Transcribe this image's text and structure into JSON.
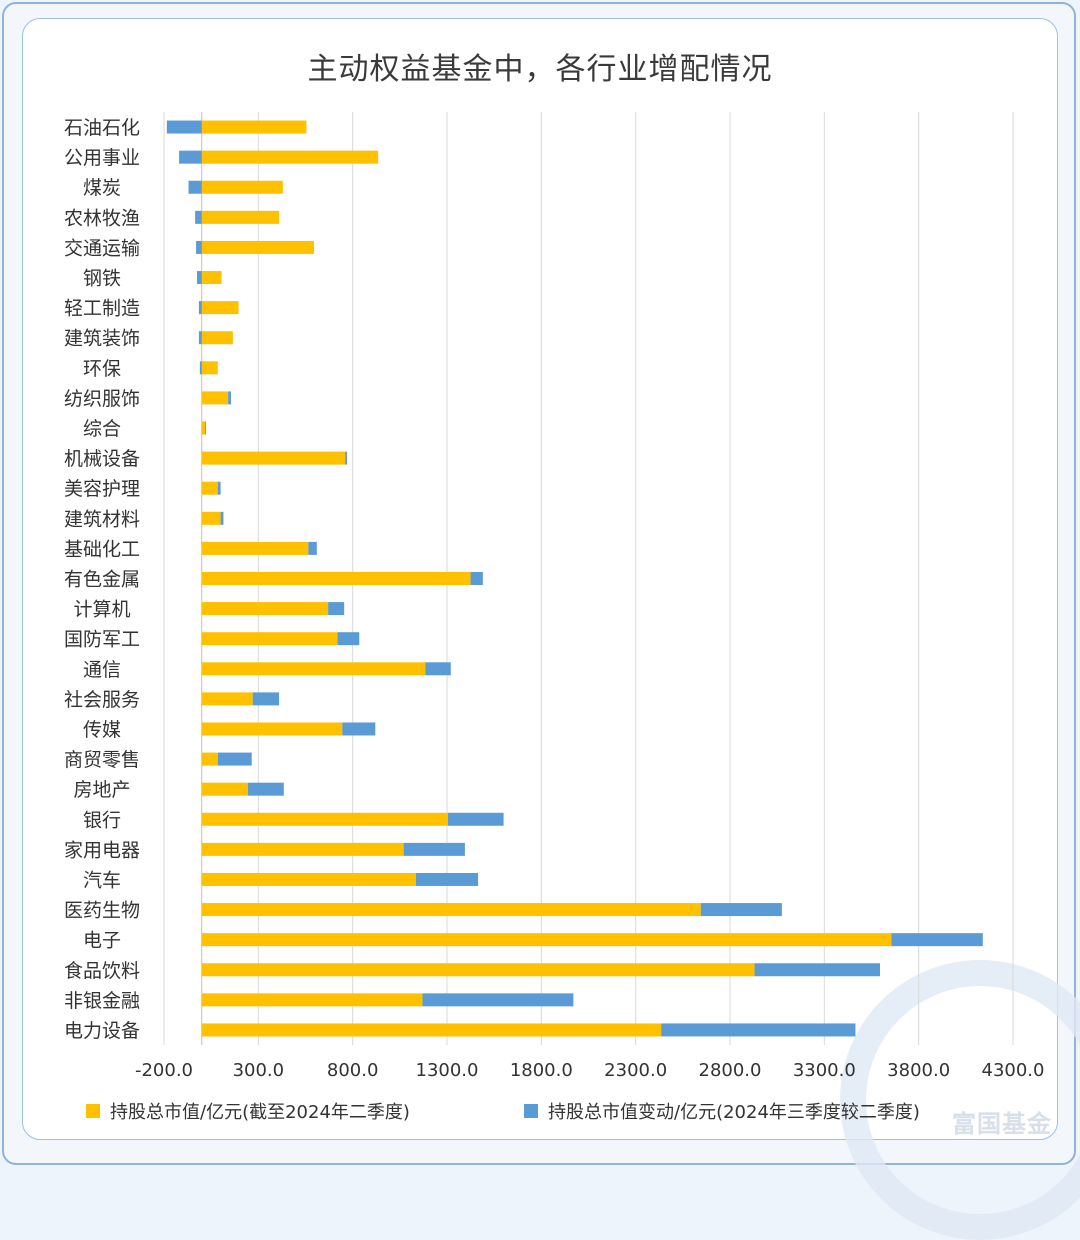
{
  "colors": {
    "holding": "#FFC000",
    "change": "#5B9BD5",
    "grid": "#D9D9D9",
    "axis": "#BFBFBF"
  },
  "watermark_text": "富国基金",
  "chart_data": {
    "type": "bar",
    "orientation": "horizontal",
    "stacked": true,
    "title": "主动权益基金中，各行业增配情况",
    "categories": [
      "石油石化",
      "公用事业",
      "煤炭",
      "农林牧渔",
      "交通运输",
      "钢铁",
      "轻工制造",
      "建筑装饰",
      "环保",
      "纺织服饰",
      "综合",
      "机械设备",
      "美容护理",
      "建筑材料",
      "基础化工",
      "有色金属",
      "计算机",
      "国防军工",
      "通信",
      "社会服务",
      "传媒",
      "商贸零售",
      "房地产",
      "银行",
      "家用电器",
      "汽车",
      "医药生物",
      "电子",
      "食品饮料",
      "非银金融",
      "电力设备"
    ],
    "series": [
      {
        "name": "持股总市值/亿元(截至2024年二季度)",
        "values": [
          555,
          935,
          430,
          410,
          595,
          105,
          195,
          165,
          85,
          140,
          18,
          760,
          85,
          100,
          565,
          1425,
          670,
          720,
          1185,
          270,
          745,
          85,
          245,
          1305,
          1070,
          1135,
          2645,
          3655,
          2930,
          1170,
          2435
        ]
      },
      {
        "name": "持股总市值变动/亿元(2024年三季度较二季度)",
        "values": [
          -185,
          -120,
          -70,
          -35,
          -30,
          -25,
          -15,
          -15,
          -10,
          15,
          5,
          10,
          15,
          15,
          45,
          65,
          85,
          115,
          135,
          140,
          175,
          180,
          190,
          295,
          325,
          330,
          430,
          485,
          665,
          800,
          1030
        ]
      }
    ],
    "xlim": [
      -200,
      4300
    ],
    "xticks": [
      "-200.0",
      "300.0",
      "800.0",
      "1300.0",
      "1800.0",
      "2300.0",
      "2800.0",
      "3300.0",
      "3800.0",
      "4300.0"
    ],
    "grid": true,
    "legend_position": "bottom"
  }
}
